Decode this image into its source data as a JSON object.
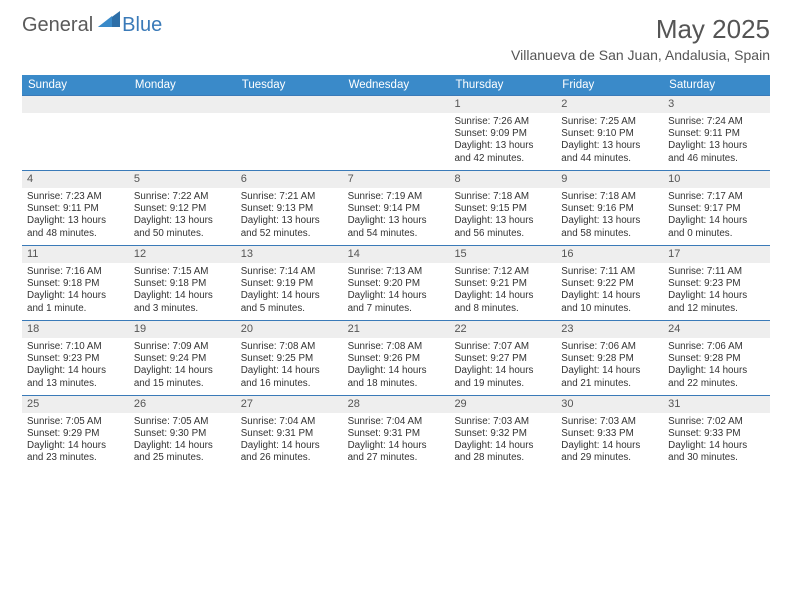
{
  "logo": {
    "general": "General",
    "blue": "Blue"
  },
  "title": "May 2025",
  "location": "Villanueva de San Juan, Andalusia, Spain",
  "colors": {
    "header_bg": "#3a8ac9",
    "accent_border": "#3a7ab8",
    "daynum_bg": "#eeeeee",
    "text": "#333333",
    "title_text": "#555555"
  },
  "day_headers": [
    "Sunday",
    "Monday",
    "Tuesday",
    "Wednesday",
    "Thursday",
    "Friday",
    "Saturday"
  ],
  "weeks": [
    [
      {
        "num": "",
        "sunrise": "",
        "sunset": "",
        "daylight1": "",
        "daylight2": ""
      },
      {
        "num": "",
        "sunrise": "",
        "sunset": "",
        "daylight1": "",
        "daylight2": ""
      },
      {
        "num": "",
        "sunrise": "",
        "sunset": "",
        "daylight1": "",
        "daylight2": ""
      },
      {
        "num": "",
        "sunrise": "",
        "sunset": "",
        "daylight1": "",
        "daylight2": ""
      },
      {
        "num": "1",
        "sunrise": "Sunrise: 7:26 AM",
        "sunset": "Sunset: 9:09 PM",
        "daylight1": "Daylight: 13 hours",
        "daylight2": "and 42 minutes."
      },
      {
        "num": "2",
        "sunrise": "Sunrise: 7:25 AM",
        "sunset": "Sunset: 9:10 PM",
        "daylight1": "Daylight: 13 hours",
        "daylight2": "and 44 minutes."
      },
      {
        "num": "3",
        "sunrise": "Sunrise: 7:24 AM",
        "sunset": "Sunset: 9:11 PM",
        "daylight1": "Daylight: 13 hours",
        "daylight2": "and 46 minutes."
      }
    ],
    [
      {
        "num": "4",
        "sunrise": "Sunrise: 7:23 AM",
        "sunset": "Sunset: 9:11 PM",
        "daylight1": "Daylight: 13 hours",
        "daylight2": "and 48 minutes."
      },
      {
        "num": "5",
        "sunrise": "Sunrise: 7:22 AM",
        "sunset": "Sunset: 9:12 PM",
        "daylight1": "Daylight: 13 hours",
        "daylight2": "and 50 minutes."
      },
      {
        "num": "6",
        "sunrise": "Sunrise: 7:21 AM",
        "sunset": "Sunset: 9:13 PM",
        "daylight1": "Daylight: 13 hours",
        "daylight2": "and 52 minutes."
      },
      {
        "num": "7",
        "sunrise": "Sunrise: 7:19 AM",
        "sunset": "Sunset: 9:14 PM",
        "daylight1": "Daylight: 13 hours",
        "daylight2": "and 54 minutes."
      },
      {
        "num": "8",
        "sunrise": "Sunrise: 7:18 AM",
        "sunset": "Sunset: 9:15 PM",
        "daylight1": "Daylight: 13 hours",
        "daylight2": "and 56 minutes."
      },
      {
        "num": "9",
        "sunrise": "Sunrise: 7:18 AM",
        "sunset": "Sunset: 9:16 PM",
        "daylight1": "Daylight: 13 hours",
        "daylight2": "and 58 minutes."
      },
      {
        "num": "10",
        "sunrise": "Sunrise: 7:17 AM",
        "sunset": "Sunset: 9:17 PM",
        "daylight1": "Daylight: 14 hours",
        "daylight2": "and 0 minutes."
      }
    ],
    [
      {
        "num": "11",
        "sunrise": "Sunrise: 7:16 AM",
        "sunset": "Sunset: 9:18 PM",
        "daylight1": "Daylight: 14 hours",
        "daylight2": "and 1 minute."
      },
      {
        "num": "12",
        "sunrise": "Sunrise: 7:15 AM",
        "sunset": "Sunset: 9:18 PM",
        "daylight1": "Daylight: 14 hours",
        "daylight2": "and 3 minutes."
      },
      {
        "num": "13",
        "sunrise": "Sunrise: 7:14 AM",
        "sunset": "Sunset: 9:19 PM",
        "daylight1": "Daylight: 14 hours",
        "daylight2": "and 5 minutes."
      },
      {
        "num": "14",
        "sunrise": "Sunrise: 7:13 AM",
        "sunset": "Sunset: 9:20 PM",
        "daylight1": "Daylight: 14 hours",
        "daylight2": "and 7 minutes."
      },
      {
        "num": "15",
        "sunrise": "Sunrise: 7:12 AM",
        "sunset": "Sunset: 9:21 PM",
        "daylight1": "Daylight: 14 hours",
        "daylight2": "and 8 minutes."
      },
      {
        "num": "16",
        "sunrise": "Sunrise: 7:11 AM",
        "sunset": "Sunset: 9:22 PM",
        "daylight1": "Daylight: 14 hours",
        "daylight2": "and 10 minutes."
      },
      {
        "num": "17",
        "sunrise": "Sunrise: 7:11 AM",
        "sunset": "Sunset: 9:23 PM",
        "daylight1": "Daylight: 14 hours",
        "daylight2": "and 12 minutes."
      }
    ],
    [
      {
        "num": "18",
        "sunrise": "Sunrise: 7:10 AM",
        "sunset": "Sunset: 9:23 PM",
        "daylight1": "Daylight: 14 hours",
        "daylight2": "and 13 minutes."
      },
      {
        "num": "19",
        "sunrise": "Sunrise: 7:09 AM",
        "sunset": "Sunset: 9:24 PM",
        "daylight1": "Daylight: 14 hours",
        "daylight2": "and 15 minutes."
      },
      {
        "num": "20",
        "sunrise": "Sunrise: 7:08 AM",
        "sunset": "Sunset: 9:25 PM",
        "daylight1": "Daylight: 14 hours",
        "daylight2": "and 16 minutes."
      },
      {
        "num": "21",
        "sunrise": "Sunrise: 7:08 AM",
        "sunset": "Sunset: 9:26 PM",
        "daylight1": "Daylight: 14 hours",
        "daylight2": "and 18 minutes."
      },
      {
        "num": "22",
        "sunrise": "Sunrise: 7:07 AM",
        "sunset": "Sunset: 9:27 PM",
        "daylight1": "Daylight: 14 hours",
        "daylight2": "and 19 minutes."
      },
      {
        "num": "23",
        "sunrise": "Sunrise: 7:06 AM",
        "sunset": "Sunset: 9:28 PM",
        "daylight1": "Daylight: 14 hours",
        "daylight2": "and 21 minutes."
      },
      {
        "num": "24",
        "sunrise": "Sunrise: 7:06 AM",
        "sunset": "Sunset: 9:28 PM",
        "daylight1": "Daylight: 14 hours",
        "daylight2": "and 22 minutes."
      }
    ],
    [
      {
        "num": "25",
        "sunrise": "Sunrise: 7:05 AM",
        "sunset": "Sunset: 9:29 PM",
        "daylight1": "Daylight: 14 hours",
        "daylight2": "and 23 minutes."
      },
      {
        "num": "26",
        "sunrise": "Sunrise: 7:05 AM",
        "sunset": "Sunset: 9:30 PM",
        "daylight1": "Daylight: 14 hours",
        "daylight2": "and 25 minutes."
      },
      {
        "num": "27",
        "sunrise": "Sunrise: 7:04 AM",
        "sunset": "Sunset: 9:31 PM",
        "daylight1": "Daylight: 14 hours",
        "daylight2": "and 26 minutes."
      },
      {
        "num": "28",
        "sunrise": "Sunrise: 7:04 AM",
        "sunset": "Sunset: 9:31 PM",
        "daylight1": "Daylight: 14 hours",
        "daylight2": "and 27 minutes."
      },
      {
        "num": "29",
        "sunrise": "Sunrise: 7:03 AM",
        "sunset": "Sunset: 9:32 PM",
        "daylight1": "Daylight: 14 hours",
        "daylight2": "and 28 minutes."
      },
      {
        "num": "30",
        "sunrise": "Sunrise: 7:03 AM",
        "sunset": "Sunset: 9:33 PM",
        "daylight1": "Daylight: 14 hours",
        "daylight2": "and 29 minutes."
      },
      {
        "num": "31",
        "sunrise": "Sunrise: 7:02 AM",
        "sunset": "Sunset: 9:33 PM",
        "daylight1": "Daylight: 14 hours",
        "daylight2": "and 30 minutes."
      }
    ]
  ]
}
